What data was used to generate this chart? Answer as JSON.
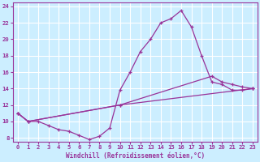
{
  "xlabel": "Windchill (Refroidissement éolien,°C)",
  "bg_color": "#cceeff",
  "grid_color": "#ffffff",
  "line_color": "#993399",
  "xlim": [
    -0.5,
    23.5
  ],
  "ylim": [
    7.5,
    24.5
  ],
  "xticks": [
    0,
    1,
    2,
    3,
    4,
    5,
    6,
    7,
    8,
    9,
    10,
    11,
    12,
    13,
    14,
    15,
    16,
    17,
    18,
    19,
    20,
    21,
    22,
    23
  ],
  "yticks": [
    8,
    10,
    12,
    14,
    16,
    18,
    20,
    22,
    24
  ],
  "line1_x": [
    0,
    1,
    2,
    3,
    4,
    5,
    6,
    7,
    8,
    9,
    10,
    11,
    12,
    13,
    14,
    15,
    16,
    17,
    18,
    19,
    20,
    21,
    22,
    23
  ],
  "line1_y": [
    11,
    10,
    10,
    9.5,
    9,
    8.8,
    8.3,
    7.8,
    8.2,
    9.2,
    13.8,
    16,
    18.5,
    20,
    22,
    22.5,
    23.5,
    21.5,
    18,
    14.8,
    14.5,
    13.8,
    13.8,
    14
  ],
  "line2_x": [
    0,
    1,
    10,
    23
  ],
  "line2_y": [
    11,
    10,
    12,
    14
  ],
  "line3_x": [
    0,
    1,
    10,
    19,
    20,
    21,
    22,
    23
  ],
  "line3_y": [
    11,
    10,
    12,
    15.5,
    14.8,
    14.5,
    14.2,
    14
  ],
  "xlabel_fontsize": 5.5,
  "tick_labelsize": 5.2,
  "linewidth": 0.9,
  "markersize": 3.5
}
